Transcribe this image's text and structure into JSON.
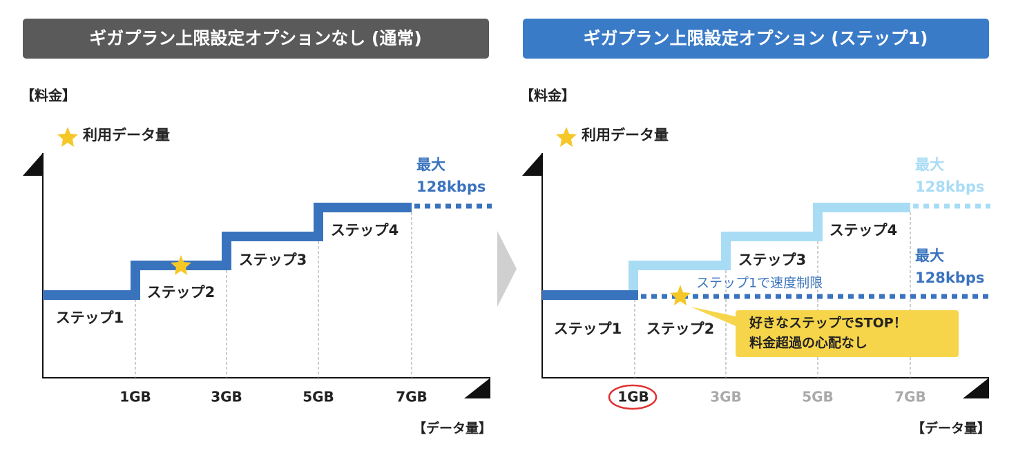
{
  "panels": [
    {
      "header": "ギガプラン上限設定オプションなし (通常)",
      "y_label": "【料金】",
      "legend": "利用データ量",
      "steps": [
        "ステップ1",
        "ステップ2",
        "ステップ3",
        "ステップ4"
      ],
      "x_ticks": [
        "1GB",
        "3GB",
        "5GB",
        "7GB"
      ],
      "x_label": "【データ量】",
      "max": {
        "label": "最大",
        "speed": "128kbps"
      }
    },
    {
      "header": "ギガプラン上限設定オプション (ステップ1)",
      "y_label": "【料金】",
      "legend": "利用データ量",
      "steps": [
        "ステップ1",
        "ステップ2",
        "ステップ3",
        "ステップ4"
      ],
      "x_ticks": [
        "1GB",
        "3GB",
        "5GB",
        "7GB"
      ],
      "x_label": "【データ量】",
      "max": {
        "label": "最大",
        "speed": "128kbps"
      },
      "limit_max": {
        "label": "最大",
        "speed": "128kbps"
      },
      "limit_note": "ステップ1で速度制限",
      "callout": [
        "好きなステップでSTOP！",
        "料金超過の心配なし"
      ]
    }
  ]
}
